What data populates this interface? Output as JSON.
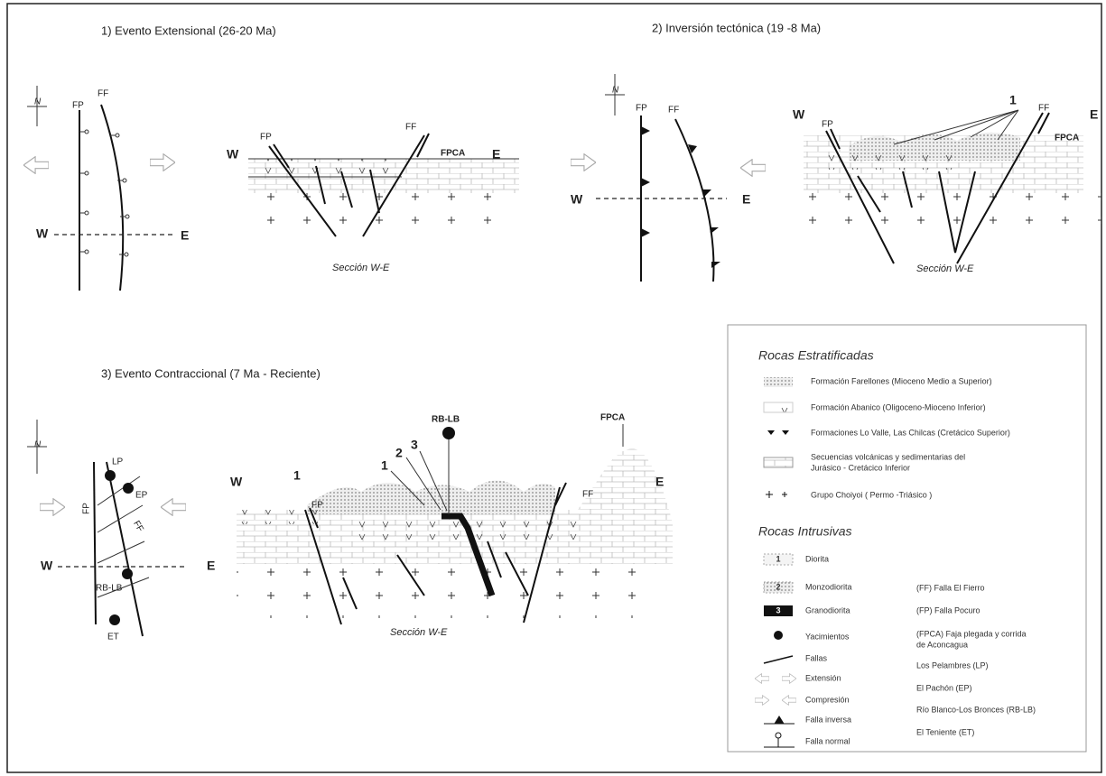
{
  "panel_1": {
    "title": "1) Evento Extensional (26-20 Ma)",
    "map": {
      "north": "N",
      "fp": "FP",
      "ff": "FF",
      "west": "W",
      "east": "E"
    },
    "section": {
      "west": "W",
      "east": "E",
      "fp": "FP",
      "ff": "FF",
      "fpca": "FPCA",
      "caption": "Sección W-E"
    }
  },
  "panel_2": {
    "title": "2) Inversión tectónica (19 -8 Ma)",
    "map": {
      "north": "N",
      "fp": "FP",
      "ff": "FF",
      "west": "W",
      "east": "E"
    },
    "section": {
      "west": "W",
      "east": "E",
      "fp": "FP",
      "ff": "FF",
      "fpca": "FPCA",
      "marker": "1",
      "caption": "Sección W-E"
    }
  },
  "panel_3": {
    "title": "3) Evento Contraccional (7 Ma - Reciente)",
    "map": {
      "north": "N",
      "lp": "LP",
      "ep": "EP",
      "fp": "FP",
      "ff": "FF",
      "rblb": "RB-LB",
      "et": "ET",
      "west": "W",
      "east": "E"
    },
    "section": {
      "west": "W",
      "east": "E",
      "fp": "FP",
      "ff": "FF",
      "fpca": "FPCA",
      "rblb": "RB-LB",
      "markers": [
        "1",
        "1",
        "2",
        "3"
      ],
      "caption": "Sección W-E"
    }
  },
  "legend": {
    "stratified_title": "Rocas Estratificadas",
    "stratified": [
      "Formación Farellones (Mioceno Medio a Superior)",
      "Formación Abanico (Oligoceno-Mioceno Inferior)",
      "Formaciones Lo Valle, Las Chilcas (Cretácico Superior)",
      "Secuencias volcánicas y sedimentarias del",
      "Jurásico - Cretácico Inferior",
      "Grupo Choiyoi ( Permo -Triásico )"
    ],
    "intrusive_title": "Rocas Intrusivas",
    "intrusive": [
      {
        "symbol": "1",
        "label": "Diorita"
      },
      {
        "symbol": "2",
        "label": "Monzodiorita"
      },
      {
        "symbol": "3",
        "label": "Granodiorita"
      },
      {
        "label": "Yacimientos"
      },
      {
        "label": "Fallas"
      },
      {
        "label": "Extensión"
      },
      {
        "label": "Compresión"
      },
      {
        "label": "Falla inversa"
      },
      {
        "label": "Falla normal"
      }
    ],
    "abbreviations": [
      "(FF) Falla El Fierro",
      "(FP) Falla Pocuro",
      "(FPCA) Faja plegada y corrida",
      "de Aconcagua",
      "Los Pelambres (LP)",
      "El Pachón (EP)",
      "Río Blanco-Los Bronces (RB-LB)",
      "El Teniente (ET)"
    ]
  }
}
